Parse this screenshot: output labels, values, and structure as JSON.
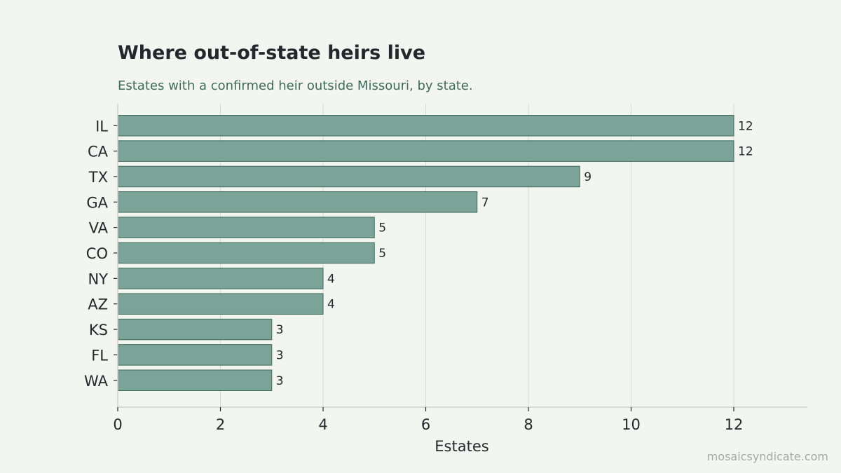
{
  "header": {
    "title": "Where out-of-state heirs live",
    "subtitle": "Estates with a confirmed heir outside Missouri, by state."
  },
  "footer": {
    "watermark": "mosaicsyndicate.com"
  },
  "colors": {
    "bar_fill": "#7ba398",
    "bar_stroke": "#3d6a5c",
    "grid": "#d8dbd5",
    "axis": "#cfd3cc",
    "text": "#22282c"
  },
  "chart_data": {
    "type": "bar",
    "orientation": "horizontal",
    "categories": [
      "IL",
      "CA",
      "TX",
      "GA",
      "VA",
      "CO",
      "NY",
      "AZ",
      "KS",
      "FL",
      "WA"
    ],
    "values": [
      12,
      12,
      9,
      7,
      5,
      5,
      4,
      4,
      3,
      3,
      3
    ],
    "xlabel": "Estates",
    "ylabel": "",
    "xlim": [
      0,
      13.4
    ],
    "xticks": [
      0,
      2,
      4,
      6,
      8,
      10,
      12
    ],
    "grid": "vertical",
    "data_labels": true
  }
}
